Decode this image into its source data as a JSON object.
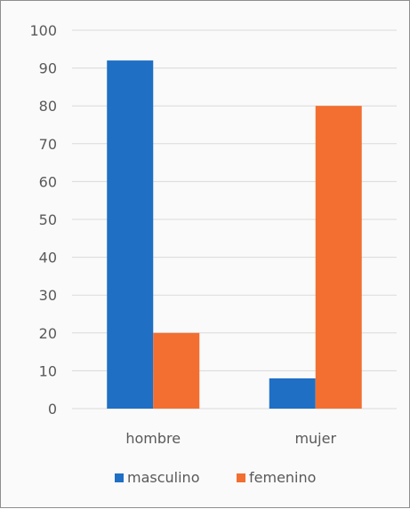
{
  "chart_data": {
    "type": "bar",
    "title": "",
    "xlabel": "",
    "ylabel": "",
    "categories": [
      "hombre",
      "mujer"
    ],
    "series": [
      {
        "name": "masculino",
        "values": [
          92,
          8
        ],
        "color": "#1f6fc5"
      },
      {
        "name": "femenino",
        "values": [
          20,
          80
        ],
        "color": "#f26f31"
      }
    ],
    "ylim": [
      0,
      100
    ],
    "yticks": [
      0,
      10,
      20,
      30,
      40,
      50,
      60,
      70,
      80,
      90,
      100
    ],
    "grid": true,
    "gridline_color": "#d9d9d9",
    "legend_position": "bottom"
  }
}
